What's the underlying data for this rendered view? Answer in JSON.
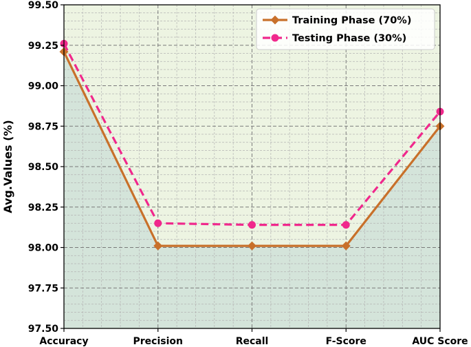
{
  "chart_data": {
    "type": "line",
    "categories": [
      "Accuracy",
      "Precision",
      "Recall",
      "F-Score",
      "AUC Score"
    ],
    "series": [
      {
        "name": "Training Phase (70%)",
        "values": [
          99.21,
          98.01,
          98.01,
          98.01,
          98.75
        ],
        "color": "#c8702a",
        "marker": "diamond",
        "linestyle": "solid"
      },
      {
        "name": "Testing Phase (30%)",
        "values": [
          99.26,
          98.15,
          98.14,
          98.14,
          98.84
        ],
        "color": "#f0288c",
        "marker": "circle",
        "linestyle": "dashed"
      }
    ],
    "ylabel": "Avg.Values (%)",
    "ylim": [
      97.5,
      99.5
    ],
    "yticks": [
      "97.50",
      "97.75",
      "98.00",
      "98.25",
      "98.50",
      "98.75",
      "99.00",
      "99.25",
      "99.50"
    ],
    "grid": true,
    "legend": "top-right",
    "area_fill": {
      "lower": "#d4e4da",
      "upper": "#edf4e2"
    }
  }
}
